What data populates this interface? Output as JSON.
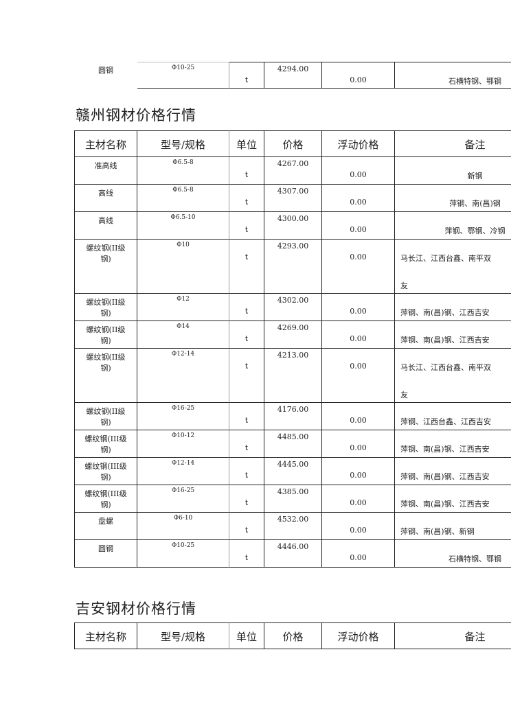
{
  "top_table": {
    "rows": [
      {
        "name": "圆钢",
        "spec": "Φ10-25",
        "unit": "t",
        "price": "4294.00",
        "float": "0.00",
        "remark": "石横特钢、鄂钢"
      }
    ]
  },
  "ganzhou": {
    "title": "赣州钢材价格行情",
    "headers": [
      "主材名称",
      "型号/规格",
      "单位",
      "价格",
      "浮动价格",
      "备注"
    ],
    "rows": [
      {
        "name": "准高线",
        "spec": "Φ6.5-8",
        "unit": "t",
        "price": "4267.00",
        "float": "0.00",
        "remark": "新钢"
      },
      {
        "name": "高线",
        "spec": "Φ6.5-8",
        "unit": "t",
        "price": "4307.00",
        "float": "0.00",
        "remark": "萍钢、南(昌)钢"
      },
      {
        "name": "高线",
        "spec": "Φ6.5-10",
        "unit": "t",
        "price": "4300.00",
        "float": "0.00",
        "remark": "萍钢、鄂钢、冷钢"
      },
      {
        "name": "螺纹钢(II级",
        "name2": "钢)",
        "spec": "Φ10",
        "unit": "t",
        "price": "4293.00",
        "float": "0.00",
        "remark": "马长江、江西台鑫、南平双",
        "remark2": "友"
      },
      {
        "name": "螺纹钢(II级",
        "name2": "钢)",
        "spec": "Φ12",
        "unit": "t",
        "price": "4302.00",
        "float": "0.00",
        "remark": "萍钢、南(昌)钢、江西吉安"
      },
      {
        "name": "螺纹钢(II级",
        "name2": "钢)",
        "spec": "Φ14",
        "unit": "t",
        "price": "4269.00",
        "float": "0.00",
        "remark": "萍钢、南(昌)钢、江西吉安"
      },
      {
        "name": "螺纹钢(II级",
        "name2": "钢)",
        "spec": "Φ12-14",
        "unit": "t",
        "price": "4213.00",
        "float": "0.00",
        "remark": "马长江、江西台鑫、南平双",
        "remark2": "友"
      },
      {
        "name": "螺纹钢(II级",
        "name2": "钢)",
        "spec": "Φ16-25",
        "unit": "t",
        "price": "4176.00",
        "float": "0.00",
        "remark": "萍钢、江西台鑫、江西吉安"
      },
      {
        "name": "螺纹钢(III级",
        "name2": "钢)",
        "spec": "Φ10-12",
        "unit": "t",
        "price": "4485.00",
        "float": "0.00",
        "remark": "萍钢、南(昌)钢、江西吉安"
      },
      {
        "name": "螺纹钢(III级",
        "name2": "钢)",
        "spec": "Φ12-14",
        "unit": "t",
        "price": "4445.00",
        "float": "0.00",
        "remark": "萍钢、南(昌)钢、江西吉安"
      },
      {
        "name": "螺纹钢(III级",
        "name2": "钢)",
        "spec": "Φ16-25",
        "unit": "t",
        "price": "4385.00",
        "float": "0.00",
        "remark": "萍钢、南(昌)钢、江西吉安"
      },
      {
        "name": "盘螺",
        "spec": "Φ6-10",
        "unit": "t",
        "price": "4532.00",
        "float": "0.00",
        "remark": "萍钢、南(昌)钢、新钢"
      },
      {
        "name": "圆钢",
        "spec": "Φ10-25",
        "unit": "t",
        "price": "4446.00",
        "float": "0.00",
        "remark": "石横特钢、鄂钢"
      }
    ]
  },
  "jian": {
    "title": "吉安钢材价格行情",
    "headers": [
      "主材名称",
      "型号/规格",
      "单位",
      "价格",
      "浮动价格",
      "备注"
    ]
  }
}
